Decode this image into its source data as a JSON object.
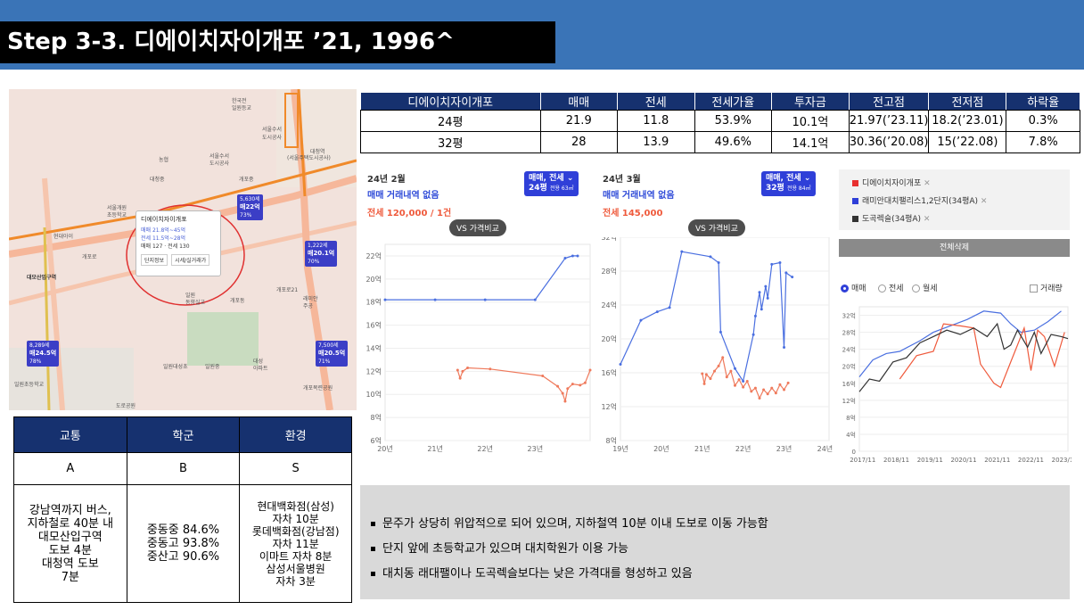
{
  "header": {
    "title": "Step 3-3. 디에이치자이개포 ’21, 1996^"
  },
  "colors": {
    "header_bg": "#3a74b7",
    "navy": "#16316f",
    "blue_series": "#4a6fe0",
    "red_series": "#ef7a5c",
    "black_series": "#333333"
  },
  "map": {
    "labels": [
      "한국전",
      "일원등교",
      "서울수서",
      "도시공사",
      "대청역",
      "(서울주택도시공사)",
      "농협",
      "서울수서",
      "도시공사",
      "대청중",
      "개포중",
      "서울개원",
      "초등학교",
      "현대아이",
      "개포로",
      "대모산입구역",
      "일원",
      "동향실교",
      "개포동",
      "일원대성초",
      "일원중",
      "개포로21",
      "래미안",
      "주공",
      "대성",
      "아파트",
      "개포목련공원",
      "일원초등학교",
      "도로공원"
    ],
    "popup": {
      "name": "디에이치자이개포",
      "sale": "매매 21.8억~45억",
      "jeonse": "전세 11.5억~28억",
      "count": "매매 127 · 전세 130",
      "btn1": "단지정보",
      "btn2": "시세/실거래가"
    },
    "pins": [
      {
        "top": "5,630세",
        "val": "매22억",
        "sub": "73%"
      },
      {
        "top": "1,222세",
        "val": "매20.1억",
        "sub": "70%"
      },
      {
        "top": "8,289세",
        "val": "매24.5억",
        "sub": "78%"
      },
      {
        "top": "7,500세",
        "val": "매20.5억",
        "sub": "71%"
      }
    ],
    "station": "대모산입구역"
  },
  "price_table": {
    "headers": [
      "디에이치자이개포",
      "매매",
      "전세",
      "전세가율",
      "투자금",
      "전고점",
      "전저점",
      "하락율"
    ],
    "rows": [
      [
        "24평",
        "21.9",
        "11.8",
        "53.9%",
        "10.1억",
        "21.97(’23.11)",
        "18.2(’23.01)",
        "0.3%"
      ],
      [
        "32평",
        "28",
        "13.9",
        "49.6%",
        "14.1억",
        "30.36(’20.08)",
        "15(’22.08)",
        "7.8%"
      ]
    ]
  },
  "chart_data": [
    {
      "type": "line",
      "panel": {
        "month": "24년 2월",
        "no_trade": "매매 거래내역 없음",
        "jeonse": "전세 120,000 / 1건",
        "badge_top": "매매, 전세",
        "badge_size": "24평",
        "badge_sub": "전용 63㎡",
        "vs": "VS 가격비교"
      },
      "x_ticks": [
        "20년",
        "21년",
        "22년",
        "23년"
      ],
      "y_ticks": [
        "6억",
        "8억",
        "10억",
        "12억",
        "14억",
        "16억",
        "18억",
        "20억",
        "22억"
      ],
      "xlim": [
        2020.0,
        2024.1
      ],
      "ylim": [
        6,
        23
      ],
      "series": [
        {
          "color": "#4a6fe0",
          "points": [
            [
              2020.0,
              18.2
            ],
            [
              2021.0,
              18.2
            ],
            [
              2022.0,
              18.2
            ],
            [
              2023.0,
              18.2
            ],
            [
              2023.6,
              21.8
            ],
            [
              2023.75,
              22.0
            ],
            [
              2023.85,
              22.0
            ]
          ]
        },
        {
          "color": "#ef7a5c",
          "points": [
            [
              2021.45,
              12.1
            ],
            [
              2021.5,
              11.4
            ],
            [
              2021.55,
              12.0
            ],
            [
              2021.65,
              12.3
            ],
            [
              2022.1,
              12.2
            ],
            [
              2023.15,
              11.6
            ],
            [
              2023.45,
              10.7
            ],
            [
              2023.55,
              10.1
            ],
            [
              2023.6,
              9.4
            ],
            [
              2023.65,
              10.5
            ],
            [
              2023.75,
              10.9
            ],
            [
              2023.9,
              10.8
            ],
            [
              2024.0,
              11.0
            ],
            [
              2024.1,
              12.1
            ]
          ]
        }
      ]
    },
    {
      "type": "line",
      "panel": {
        "month": "24년 3월",
        "no_trade": "매매 거래내역 없음",
        "jeonse": "전세 145,000",
        "badge_top": "매매, 전세",
        "badge_size": "32평",
        "badge_sub": "전용 84㎡",
        "vs": "VS 가격비교"
      },
      "x_ticks": [
        "19년",
        "20년",
        "21년",
        "22년",
        "23년",
        "24년"
      ],
      "y_ticks": [
        "8억",
        "12억",
        "16억",
        "20억",
        "24억",
        "28억",
        "32억"
      ],
      "xlim": [
        2019.0,
        2024.1
      ],
      "ylim": [
        8,
        32
      ],
      "series": [
        {
          "color": "#4a6fe0",
          "points": [
            [
              2019.0,
              17.0
            ],
            [
              2019.5,
              22.2
            ],
            [
              2019.9,
              23.2
            ],
            [
              2020.2,
              23.7
            ],
            [
              2020.5,
              30.3
            ],
            [
              2021.2,
              29.7
            ],
            [
              2021.4,
              29.0
            ],
            [
              2021.45,
              20.8
            ],
            [
              2021.8,
              16.5
            ],
            [
              2022.0,
              15.0
            ],
            [
              2022.25,
              20.5
            ],
            [
              2022.3,
              22.7
            ],
            [
              2022.4,
              25.5
            ],
            [
              2022.45,
              23.5
            ],
            [
              2022.55,
              26.2
            ],
            [
              2022.6,
              24.8
            ],
            [
              2022.7,
              28.8
            ],
            [
              2022.9,
              29.0
            ],
            [
              2023.0,
              19.0
            ],
            [
              2023.05,
              27.8
            ],
            [
              2023.2,
              27.3
            ]
          ]
        },
        {
          "color": "#ef7a5c",
          "points": [
            [
              2021.0,
              15.9
            ],
            [
              2021.05,
              14.7
            ],
            [
              2021.1,
              15.8
            ],
            [
              2021.2,
              15.3
            ],
            [
              2021.3,
              16.2
            ],
            [
              2021.4,
              16.8
            ],
            [
              2021.5,
              17.8
            ],
            [
              2021.6,
              15.5
            ],
            [
              2021.7,
              16.2
            ],
            [
              2021.8,
              14.5
            ],
            [
              2021.9,
              15.2
            ],
            [
              2022.0,
              14.3
            ],
            [
              2022.1,
              15.0
            ],
            [
              2022.2,
              13.8
            ],
            [
              2022.3,
              14.2
            ],
            [
              2022.4,
              13.0
            ],
            [
              2022.5,
              14.0
            ],
            [
              2022.6,
              13.5
            ],
            [
              2022.7,
              14.2
            ],
            [
              2022.8,
              13.6
            ],
            [
              2022.9,
              14.6
            ],
            [
              2023.0,
              14.0
            ],
            [
              2023.1,
              14.8
            ]
          ]
        }
      ]
    },
    {
      "type": "line",
      "panel": {
        "radio_sale": "매매",
        "radio_jeonse": "전세",
        "radio_monthly": "월세",
        "check_volume": "거래량"
      },
      "legend": [
        "디에이치자이개포",
        "래미안대치팰리스1,2단지(34평A)",
        "도곡렉슬(34평A)"
      ],
      "reset_label": "전체삭제",
      "x_ticks": [
        "2017/11",
        "2018/11",
        "2019/11",
        "2020/11",
        "2021/11",
        "2022/11",
        "2023/11"
      ],
      "y_ticks": [
        "0",
        "4억",
        "8억",
        "12억",
        "16억",
        "20억",
        "24억",
        "28억",
        "32억"
      ],
      "xlim": [
        2017.8,
        2024.0
      ],
      "ylim": [
        0,
        34
      ],
      "series": [
        {
          "name": "래미안대치팰리스1,2단지(34평A)",
          "color": "#4a6fe0",
          "points": [
            [
              2017.8,
              17.5
            ],
            [
              2018.2,
              21.5
            ],
            [
              2018.6,
              23.0
            ],
            [
              2019.0,
              23.5
            ],
            [
              2019.6,
              26.0
            ],
            [
              2020.0,
              28.0
            ],
            [
              2020.5,
              29.5
            ],
            [
              2021.0,
              31.0
            ],
            [
              2021.5,
              33.0
            ],
            [
              2022.0,
              32.5
            ],
            [
              2022.3,
              30.0
            ],
            [
              2022.6,
              28.0
            ],
            [
              2023.0,
              28.5
            ],
            [
              2023.4,
              30.5
            ],
            [
              2023.8,
              33.0
            ]
          ]
        },
        {
          "name": "디에이치자이개포",
          "color": "#ef5a3c",
          "points": [
            [
              2019.0,
              17.0
            ],
            [
              2019.5,
              22.5
            ],
            [
              2020.0,
              23.5
            ],
            [
              2020.3,
              30.0
            ],
            [
              2020.8,
              29.5
            ],
            [
              2021.2,
              29.0
            ],
            [
              2021.4,
              20.5
            ],
            [
              2021.8,
              16.0
            ],
            [
              2022.0,
              15.0
            ],
            [
              2022.3,
              21.0
            ],
            [
              2022.5,
              25.0
            ],
            [
              2022.7,
              29.0
            ],
            [
              2022.9,
              19.0
            ],
            [
              2023.1,
              28.5
            ],
            [
              2023.3,
              27.0
            ],
            [
              2023.6,
              20.0
            ],
            [
              2023.9,
              28.0
            ]
          ]
        },
        {
          "name": "도곡렉슬(34평A)",
          "color": "#333333",
          "points": [
            [
              2017.8,
              14.0
            ],
            [
              2018.1,
              17.0
            ],
            [
              2018.4,
              16.5
            ],
            [
              2018.8,
              21.0
            ],
            [
              2019.2,
              22.0
            ],
            [
              2019.6,
              25.5
            ],
            [
              2020.0,
              27.0
            ],
            [
              2020.4,
              28.5
            ],
            [
              2020.8,
              27.5
            ],
            [
              2021.2,
              29.0
            ],
            [
              2021.6,
              27.0
            ],
            [
              2021.9,
              30.0
            ],
            [
              2022.1,
              24.0
            ],
            [
              2022.3,
              25.0
            ],
            [
              2022.5,
              28.5
            ],
            [
              2022.8,
              24.5
            ],
            [
              2023.0,
              28.0
            ],
            [
              2023.2,
              23.0
            ],
            [
              2023.5,
              27.5
            ],
            [
              2023.8,
              27.0
            ],
            [
              2024.0,
              26.5
            ]
          ]
        }
      ]
    }
  ],
  "info_table": {
    "headers": [
      "교통",
      "학군",
      "환경"
    ],
    "grades": [
      "A",
      "B",
      "S"
    ],
    "details": [
      "강남역까지 버스,\n지하철로 40분 내\n대모산입구역\n도보 4분\n대청역 도보\n7분",
      "중동중 84.6%\n중동고 93.8%\n중산고 90.6%",
      "현대백화점(삼성)\n자차 10분\n롯데백화점(강남점)\n자차 11분\n이마트 자차 8분\n삼성서울병원\n자차 3분"
    ]
  },
  "notes": [
    "문주가 상당히 위압적으로 되어 있으며, 지하철역 10분 이내 도보로 이동 가능함",
    "단지 앞에 초등학교가 있으며 대치학원가 이용 가능",
    "대치동 래대팰이나 도곡렉슬보다는 낮은 가격대를 형성하고 있음"
  ]
}
